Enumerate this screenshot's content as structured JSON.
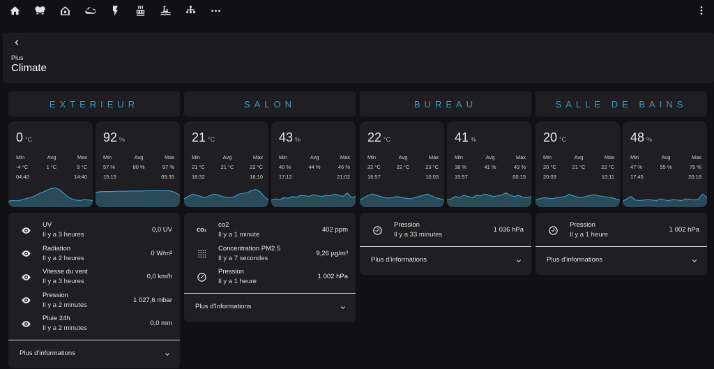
{
  "toolbar": {
    "icons": [
      "home-icon",
      "lightbulb-group-icon",
      "house-outline-icon",
      "cloud-icon",
      "flash-icon",
      "radiator-icon",
      "pool-icon",
      "network-icon",
      "more-horizontal-icon"
    ],
    "menu_icon": "dots-vertical-icon"
  },
  "header": {
    "breadcrumb": "Plus",
    "title": "Climate"
  },
  "accent_color": "#3a9ac4",
  "columns": [
    {
      "title": "EXTERIEUR",
      "tiles": [
        {
          "value": "0",
          "unit": "°C",
          "labels": [
            "Min",
            "Avg",
            "Max"
          ],
          "vals": [
            "-4 °C",
            "1 °C",
            "9 °C"
          ],
          "times": [
            "04:40",
            "",
            "14:40"
          ],
          "trend": [
            0.25,
            0.28,
            0.27,
            0.3,
            0.35,
            0.4,
            0.45,
            0.55,
            0.62,
            0.7,
            0.78,
            0.82,
            0.75,
            0.6,
            0.45,
            0.35,
            0.3,
            0.28,
            0.32,
            0.3,
            0.28
          ]
        },
        {
          "value": "92",
          "unit": "%",
          "labels": [
            "Min",
            "Avg",
            "Max"
          ],
          "vals": [
            "57 %",
            "80 %",
            "97 %"
          ],
          "times": [
            "15:15",
            "",
            "05:35"
          ],
          "trend": [
            0.62,
            0.65,
            0.66,
            0.66,
            0.66,
            0.67,
            0.67,
            0.67,
            0.68,
            0.68,
            0.68,
            0.68,
            0.69,
            0.69,
            0.7,
            0.7,
            0.7,
            0.69,
            0.68,
            0.6,
            0.5
          ]
        }
      ],
      "entities": [
        {
          "icon": "eye-icon",
          "name": "UV",
          "sub": "Il y a 3 heures",
          "value": "0,0 UV"
        },
        {
          "icon": "eye-icon",
          "name": "Radiation",
          "sub": "Il y a 2 heures",
          "value": "0 W/m²"
        },
        {
          "icon": "eye-icon",
          "name": "Vitesse du vent",
          "sub": "Il y a 3 heures",
          "value": "0,0 km/h"
        },
        {
          "icon": "eye-icon",
          "name": "Pression",
          "sub": "Il y a 2 minutes",
          "value": "1 027,6 mbar"
        },
        {
          "icon": "eye-icon",
          "name": "Pluie 24h",
          "sub": "Il y a 2 minutes",
          "value": "0,0 mm"
        }
      ],
      "more": "Plus d'informations"
    },
    {
      "title": "SALON",
      "tiles": [
        {
          "value": "21",
          "unit": "°C",
          "labels": [
            "Min",
            "Avg",
            "Max"
          ],
          "vals": [
            "21 °C",
            "21 °C",
            "22 °C"
          ],
          "times": [
            "18:32",
            "",
            "16:10"
          ],
          "trend": [
            0.35,
            0.45,
            0.55,
            0.5,
            0.45,
            0.4,
            0.48,
            0.55,
            0.52,
            0.45,
            0.42,
            0.4,
            0.45,
            0.55,
            0.58,
            0.62,
            0.7,
            0.75,
            0.65,
            0.45,
            0.3
          ]
        },
        {
          "value": "43",
          "unit": "%",
          "labels": [
            "Min",
            "Avg",
            "Max"
          ],
          "vals": [
            "40 %",
            "44 %",
            "46 %"
          ],
          "times": [
            "17:12",
            "",
            "21:02"
          ],
          "trend": [
            0.3,
            0.35,
            0.32,
            0.4,
            0.38,
            0.45,
            0.42,
            0.5,
            0.48,
            0.46,
            0.52,
            0.48,
            0.45,
            0.5,
            0.48,
            0.55,
            0.5,
            0.45,
            0.6,
            0.4,
            0.45
          ]
        }
      ],
      "entities": [
        {
          "icon": "co2-icon",
          "name": "co2",
          "sub": "Il y a 1 minute",
          "value": "402 ppm"
        },
        {
          "icon": "dots-grid-icon",
          "name": "Concentration PM2.5",
          "sub": "Il y a 7 secondes",
          "value": "9,26 µg/m³"
        },
        {
          "icon": "gauge-icon",
          "name": "Pression",
          "sub": "Il y a 1 heure",
          "value": "1 002 hPa"
        }
      ],
      "more": "Plus d'Informations"
    },
    {
      "title": "BUREAU",
      "tiles": [
        {
          "value": "22",
          "unit": "°C",
          "labels": [
            "Min",
            "Avg",
            "Max"
          ],
          "vals": [
            "22 °C",
            "22 °C",
            "23 °C"
          ],
          "times": [
            "16:57",
            "",
            "10:03"
          ],
          "trend": [
            0.3,
            0.4,
            0.5,
            0.55,
            0.5,
            0.45,
            0.4,
            0.38,
            0.42,
            0.45,
            0.4,
            0.38,
            0.35,
            0.4,
            0.45,
            0.5,
            0.55,
            0.48,
            0.4,
            0.35,
            0.3
          ]
        },
        {
          "value": "41",
          "unit": "%",
          "labels": [
            "Min",
            "Avg",
            "Max"
          ],
          "vals": [
            "38 %",
            "41 %",
            "43 %"
          ],
          "times": [
            "15:57",
            "",
            "00:15"
          ],
          "trend": [
            0.3,
            0.35,
            0.45,
            0.4,
            0.5,
            0.45,
            0.4,
            0.5,
            0.48,
            0.55,
            0.5,
            0.45,
            0.48,
            0.52,
            0.6,
            0.5,
            0.45,
            0.5,
            0.42,
            0.4,
            0.45
          ]
        }
      ],
      "entities": [
        {
          "icon": "gauge-icon",
          "name": "Pression",
          "sub": "Il y a 33 minutes",
          "value": "1 036 hPa"
        }
      ],
      "more": "Plus d'informations"
    },
    {
      "title": "SALLE DE BAINS",
      "tiles": [
        {
          "value": "20",
          "unit": "°C",
          "labels": [
            "Min",
            "Avg",
            "Max"
          ],
          "vals": [
            "20 °C",
            "21 °C",
            "22 °C"
          ],
          "times": [
            "20:09",
            "",
            "10:11"
          ],
          "trend": [
            0.3,
            0.35,
            0.4,
            0.38,
            0.36,
            0.4,
            0.42,
            0.45,
            0.55,
            0.48,
            0.42,
            0.4,
            0.45,
            0.5,
            0.52,
            0.48,
            0.45,
            0.42,
            0.4,
            0.35,
            0.3
          ]
        },
        {
          "value": "48",
          "unit": "%",
          "labels": [
            "Min",
            "Avg",
            "Max"
          ],
          "vals": [
            "47 %",
            "55 %",
            "75 %"
          ],
          "times": [
            "17:45",
            "",
            "20:18"
          ],
          "trend": [
            0.25,
            0.35,
            0.45,
            0.3,
            0.28,
            0.3,
            0.32,
            0.3,
            0.28,
            0.35,
            0.3,
            0.28,
            0.32,
            0.3,
            0.28,
            0.35,
            0.32,
            0.3,
            0.35,
            0.55,
            0.4
          ]
        }
      ],
      "entities": [
        {
          "icon": "gauge-icon",
          "name": "Pression",
          "sub": "Il y a 1 heure",
          "value": "1 002 hPa"
        }
      ],
      "more": "Plus d'informations"
    }
  ]
}
